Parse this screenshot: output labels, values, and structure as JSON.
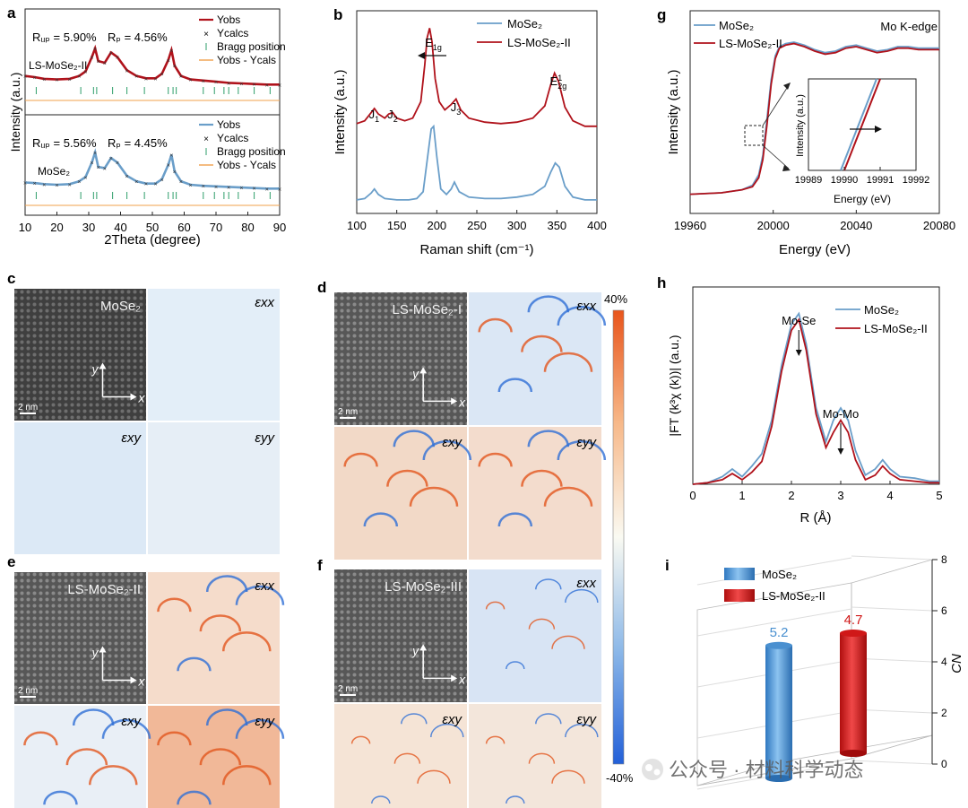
{
  "panel_letters": [
    "a",
    "b",
    "g",
    "c",
    "d",
    "h",
    "e",
    "f",
    "i"
  ],
  "chart_data": [
    {
      "id": "a",
      "type": "line",
      "xlabel": "2Theta (degree)",
      "ylabel": "Intensity (a.u.)",
      "xlim": [
        10,
        90
      ],
      "xticks": [
        10,
        20,
        30,
        40,
        50,
        60,
        70,
        80,
        90
      ],
      "legend_entries": [
        "Yobs",
        "Ycalcs",
        "Bragg position",
        "Yobs - Ycals"
      ],
      "subplots": [
        {
          "sample": "LS-MoSe2-II",
          "sample_label": "LS-MoSe₂-II",
          "rwp": "Rᵤₚ = 5.90%",
          "rp": "Rₚ = 4.56%",
          "obs_color": "#b0121b",
          "x": [
            10,
            13,
            16,
            20,
            24,
            27,
            29,
            31,
            32,
            33,
            35,
            37,
            39,
            42,
            45,
            48,
            51,
            53,
            55,
            56,
            57,
            59,
            62,
            66,
            70,
            74,
            78,
            82,
            86,
            90
          ],
          "y": [
            0.52,
            0.5,
            0.47,
            0.46,
            0.47,
            0.52,
            0.6,
            0.85,
            1.0,
            0.78,
            0.75,
            0.93,
            0.85,
            0.62,
            0.52,
            0.48,
            0.48,
            0.56,
            0.8,
            0.97,
            0.7,
            0.52,
            0.46,
            0.44,
            0.42,
            0.4,
            0.39,
            0.38,
            0.37,
            0.37
          ]
        },
        {
          "sample": "MoSe2",
          "sample_label": "MoSe₂",
          "rwp": "Rᵤₚ = 5.56%",
          "rp": "Rₚ = 4.45%",
          "obs_color": "#6a9ec9",
          "x": [
            10,
            13,
            16,
            20,
            24,
            27,
            29,
            31,
            32,
            33,
            35,
            37,
            39,
            42,
            45,
            48,
            51,
            53,
            55,
            56,
            57,
            59,
            62,
            66,
            70,
            74,
            78,
            82,
            86,
            90
          ],
          "y": [
            0.46,
            0.45,
            0.43,
            0.42,
            0.43,
            0.48,
            0.56,
            0.82,
            1.0,
            0.74,
            0.72,
            0.9,
            0.82,
            0.58,
            0.48,
            0.44,
            0.44,
            0.52,
            0.78,
            0.96,
            0.66,
            0.48,
            0.42,
            0.4,
            0.39,
            0.38,
            0.37,
            0.36,
            0.35,
            0.35
          ]
        }
      ],
      "bragg_positions": [
        13.5,
        27.5,
        31.5,
        32.5,
        37.5,
        42.0,
        47.5,
        55.0,
        56.5,
        57.5,
        66.0,
        69.5,
        72.5,
        74.0,
        77.0,
        82.0,
        87.0
      ]
    },
    {
      "id": "b",
      "type": "line",
      "xlabel": "Raman shift (cm⁻¹)",
      "ylabel": "Intensity (a.u.)",
      "xlim": [
        100,
        400
      ],
      "xticks": [
        100,
        150,
        200,
        250,
        300,
        350,
        400
      ],
      "series": [
        {
          "name": "MoSe₂",
          "color": "#6a9ec9",
          "x": [
            100,
            110,
            118,
            122,
            127,
            135,
            150,
            165,
            175,
            183,
            188,
            193,
            196,
            200,
            205,
            212,
            218,
            222,
            228,
            240,
            260,
            280,
            300,
            320,
            335,
            342,
            348,
            353,
            360,
            370,
            385,
            400
          ],
          "y": [
            0.06,
            0.07,
            0.11,
            0.14,
            0.1,
            0.07,
            0.06,
            0.06,
            0.07,
            0.12,
            0.35,
            0.58,
            0.6,
            0.38,
            0.14,
            0.1,
            0.14,
            0.19,
            0.12,
            0.08,
            0.07,
            0.07,
            0.08,
            0.1,
            0.16,
            0.26,
            0.33,
            0.3,
            0.16,
            0.08,
            0.06,
            0.06
          ]
        },
        {
          "name": "LS-MoSe₂-II",
          "color": "#b0121b",
          "x": [
            100,
            110,
            118,
            122,
            127,
            135,
            140,
            145,
            150,
            160,
            170,
            180,
            185,
            188,
            191,
            194,
            198,
            203,
            210,
            218,
            224,
            230,
            240,
            260,
            280,
            300,
            320,
            335,
            342,
            347,
            352,
            360,
            370,
            385,
            400
          ],
          "y": [
            0.62,
            0.64,
            0.7,
            0.73,
            0.69,
            0.66,
            0.69,
            0.7,
            0.66,
            0.64,
            0.66,
            0.78,
            1.05,
            1.25,
            1.32,
            1.22,
            0.95,
            0.78,
            0.72,
            0.76,
            0.8,
            0.72,
            0.66,
            0.63,
            0.62,
            0.63,
            0.66,
            0.75,
            0.9,
            0.99,
            0.93,
            0.74,
            0.64,
            0.6,
            0.6
          ]
        }
      ],
      "annotations": [
        {
          "text": "J",
          "sub": "1",
          "x": 122
        },
        {
          "text": "J",
          "sub": "2",
          "x": 145
        },
        {
          "text": "E",
          "sub": "1g",
          "x": 192
        },
        {
          "text": "J",
          "sub": "3",
          "x": 224
        },
        {
          "text": "E",
          "sup": "1",
          "sub": "2g",
          "x": 348
        }
      ]
    },
    {
      "id": "g",
      "type": "line",
      "xlabel": "Energy (eV)",
      "ylabel": "Intensity (a.u.)",
      "xlim": [
        19960,
        20080
      ],
      "xticks": [
        19960,
        20000,
        20040,
        20080
      ],
      "annotation": "Mo K-edge",
      "series": [
        {
          "name": "MoSe₂",
          "color": "#6a9ec9",
          "x": [
            19960,
            19975,
            19985,
            19990,
            19993,
            19995,
            19997,
            19999,
            20001,
            20003,
            20006,
            20010,
            20015,
            20020,
            20025,
            20030,
            20035,
            20040,
            20045,
            20050,
            20055,
            20060,
            20065,
            20070,
            20080
          ],
          "y": [
            0.02,
            0.03,
            0.05,
            0.08,
            0.15,
            0.28,
            0.52,
            0.78,
            0.94,
            1.0,
            1.02,
            1.03,
            1.01,
            0.98,
            0.96,
            0.97,
            1.0,
            1.01,
            0.99,
            0.97,
            0.98,
            1.0,
            1.0,
            0.99,
            0.99
          ]
        },
        {
          "name": "LS-MoSe₂-II",
          "color": "#b0121b",
          "x": [
            19960,
            19975,
            19985,
            19990,
            19993,
            19995,
            19997,
            19999,
            20001,
            20003,
            20006,
            20010,
            20015,
            20020,
            20025,
            20030,
            20035,
            20040,
            20045,
            20050,
            20055,
            20060,
            20065,
            20070,
            20080
          ],
          "y": [
            0.02,
            0.03,
            0.05,
            0.07,
            0.13,
            0.25,
            0.48,
            0.75,
            0.92,
            0.99,
            1.01,
            1.02,
            1.0,
            0.97,
            0.95,
            0.96,
            0.99,
            1.0,
            0.98,
            0.96,
            0.97,
            0.99,
            0.99,
            0.98,
            0.98
          ]
        }
      ],
      "inset": {
        "xlabel": "Energy  (eV)",
        "ylabel": "Intensity (a.u.)",
        "xlim": [
          19989,
          19992
        ],
        "xticks": [
          19989,
          19990,
          19991,
          19992
        ],
        "lines": [
          {
            "series": "MoSe₂",
            "x": [
              19989.9,
              19990.9
            ],
            "y": [
              0.0,
              1.0
            ]
          },
          {
            "series": "LS-MoSe₂-II",
            "x": [
              19990.0,
              19991.0
            ],
            "y": [
              0.0,
              1.0
            ]
          }
        ]
      }
    },
    {
      "id": "h",
      "type": "line",
      "xlabel": "R (Å)",
      "ylabel": "|FT (k³χ (k))| (a.u.)",
      "xlim": [
        0,
        5
      ],
      "xticks": [
        0,
        1,
        2,
        3,
        4,
        5
      ],
      "series": [
        {
          "name": "MoSe₂",
          "color": "#6a9ec9",
          "x": [
            0,
            0.3,
            0.6,
            0.8,
            1.0,
            1.2,
            1.4,
            1.6,
            1.8,
            2.0,
            2.15,
            2.3,
            2.5,
            2.7,
            2.85,
            3.0,
            3.15,
            3.3,
            3.5,
            3.7,
            3.85,
            4.0,
            4.2,
            4.5,
            4.8,
            5.0
          ],
          "y": [
            0.0,
            0.01,
            0.05,
            0.1,
            0.05,
            0.12,
            0.2,
            0.42,
            0.78,
            1.05,
            1.12,
            0.92,
            0.5,
            0.28,
            0.42,
            0.5,
            0.42,
            0.22,
            0.06,
            0.1,
            0.16,
            0.1,
            0.05,
            0.04,
            0.02,
            0.02
          ]
        },
        {
          "name": "LS-MoSe₂-II",
          "color": "#b0121b",
          "x": [
            0,
            0.3,
            0.6,
            0.8,
            1.0,
            1.2,
            1.4,
            1.6,
            1.8,
            2.0,
            2.15,
            2.3,
            2.5,
            2.7,
            2.85,
            3.0,
            3.15,
            3.3,
            3.5,
            3.7,
            3.85,
            4.0,
            4.2,
            4.5,
            4.8,
            5.0
          ],
          "y": [
            0.0,
            0.01,
            0.03,
            0.07,
            0.03,
            0.08,
            0.15,
            0.38,
            0.74,
            1.01,
            1.08,
            0.88,
            0.46,
            0.24,
            0.34,
            0.42,
            0.34,
            0.16,
            0.03,
            0.06,
            0.12,
            0.07,
            0.03,
            0.02,
            0.01,
            0.01
          ]
        }
      ],
      "annotations": [
        {
          "text": "Mo-Se",
          "x": 2.15
        },
        {
          "text": "Mo-Mo",
          "x": 3.0
        }
      ]
    },
    {
      "id": "i",
      "type": "bar",
      "categories": [
        "MoSe₂",
        "LS-MoSe₂-II"
      ],
      "values": [
        5.2,
        4.7
      ],
      "value_labels": [
        "5.2",
        "4.7"
      ],
      "colors": [
        "#4a90d0",
        "#d01818"
      ],
      "ylabel": "CN",
      "ylim": [
        0,
        8
      ],
      "yticks": [
        0,
        2,
        4,
        6,
        8
      ]
    }
  ],
  "strain_maps": {
    "colorbar": {
      "max_label": "40%",
      "min_label": "-40%"
    },
    "component_labels": {
      "xx": "εxx",
      "xy": "εxy",
      "yy": "εyy"
    },
    "axis_x": "x",
    "axis_y": "y",
    "scale": "2 nm",
    "panels": [
      {
        "id": "c",
        "title": "MoSe₂"
      },
      {
        "id": "d",
        "title": "LS-MoSe₂-I"
      },
      {
        "id": "e",
        "title": "LS-MoSe₂-II"
      },
      {
        "id": "f",
        "title": "LS-MoSe₂-III"
      }
    ]
  },
  "watermark": "公众号 · 材料科学动态"
}
